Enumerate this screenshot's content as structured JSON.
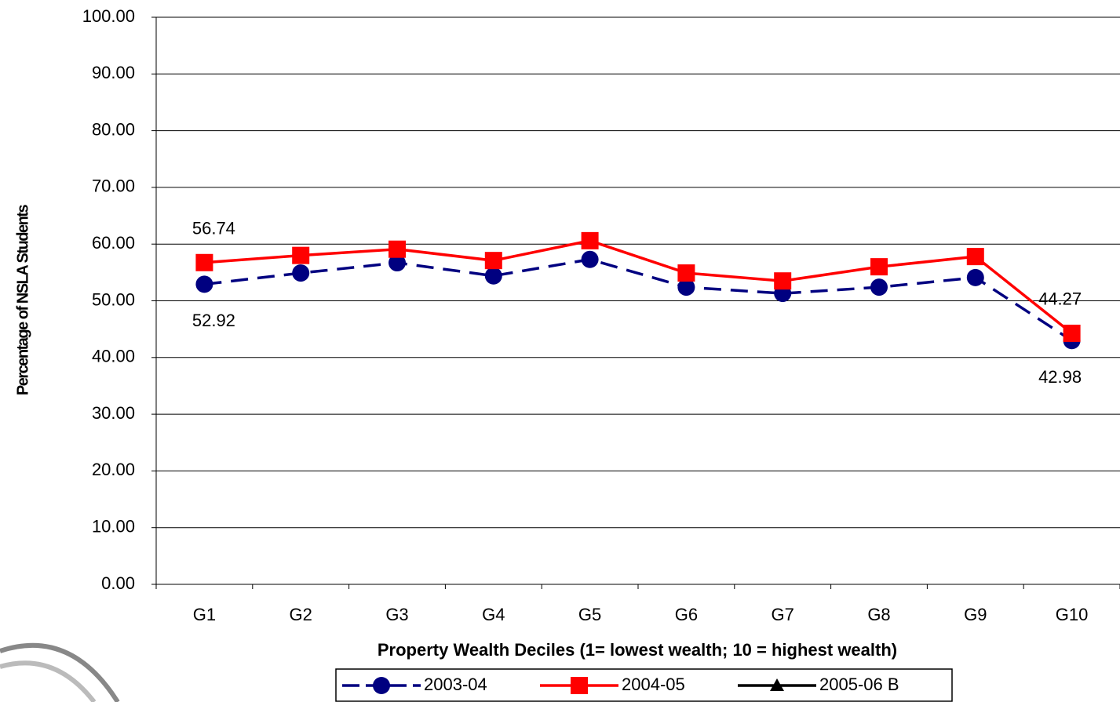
{
  "chart_data": {
    "type": "line",
    "y_label": "Percentage of NSLA Students",
    "x_label": "Property Wealth Deciles (1= lowest wealth; 10 = highest wealth)",
    "categories": [
      "G1",
      "G2",
      "G3",
      "G4",
      "G5",
      "G6",
      "G7",
      "G8",
      "G9",
      "G10"
    ],
    "series": [
      {
        "name": "2003-04",
        "color": "#000080",
        "dashed": true,
        "marker": "circle",
        "values": [
          52.92,
          54.9,
          56.7,
          54.4,
          57.3,
          52.4,
          51.3,
          52.4,
          54.1,
          42.98
        ],
        "value_labels": [
          "52.92",
          null,
          null,
          null,
          null,
          null,
          null,
          null,
          null,
          "42.98"
        ]
      },
      {
        "name": "2004-05",
        "color": "#ff0000",
        "dashed": false,
        "marker": "square",
        "values": [
          56.74,
          58.0,
          59.1,
          57.1,
          60.6,
          54.9,
          53.5,
          56.0,
          57.8,
          44.27
        ],
        "value_labels": [
          "56.74",
          null,
          null,
          null,
          null,
          null,
          null,
          null,
          null,
          "44.27"
        ]
      },
      {
        "name": "2005-06 B",
        "color": "#000000",
        "dashed": false,
        "marker": "triangle",
        "values": [
          null,
          null,
          null,
          null,
          null,
          null,
          null,
          null,
          null,
          null
        ]
      }
    ],
    "ylim": [
      0,
      100
    ],
    "yticks": [
      {
        "value": 0,
        "label": "0.00"
      },
      {
        "value": 10,
        "label": "10.00"
      },
      {
        "value": 20,
        "label": "20.00"
      },
      {
        "value": 30,
        "label": "30.00"
      },
      {
        "value": 40,
        "label": "40.00"
      },
      {
        "value": 50,
        "label": "50.00"
      },
      {
        "value": 60,
        "label": "60.00"
      },
      {
        "value": 70,
        "label": "70.00"
      },
      {
        "value": 80,
        "label": "80.00"
      },
      {
        "value": 90,
        "label": "90.00"
      },
      {
        "value": 100,
        "label": "100.00"
      }
    ],
    "grid": true
  }
}
